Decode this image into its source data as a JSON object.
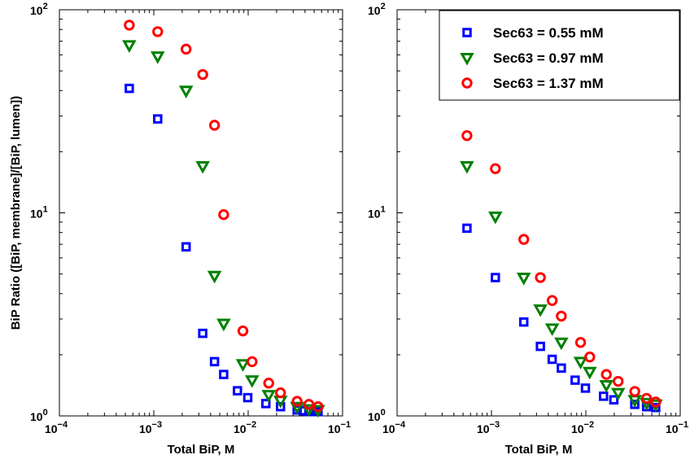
{
  "chart_data": [
    {
      "type": "scatter",
      "xscale": "log",
      "yscale": "log",
      "xlim": [
        0.0001,
        0.1
      ],
      "ylim": [
        1,
        100
      ],
      "xlabel": "Total BiP, M",
      "ylabel": "BiP Ratio ([BiP, membrane]/[BiP, lumen])",
      "x_ticks": [
        {
          "base": "10",
          "exp": "−4"
        },
        {
          "base": "10",
          "exp": "−3"
        },
        {
          "base": "10",
          "exp": "−2"
        },
        {
          "base": "10",
          "exp": "−1"
        }
      ],
      "y_ticks": [
        {
          "base": "10",
          "exp": "0"
        },
        {
          "base": "10",
          "exp": "1"
        },
        {
          "base": "10",
          "exp": "2"
        }
      ],
      "legend": null,
      "series": [
        {
          "name": "Sec63 = 0.55 mM",
          "marker": "square",
          "color": "#0000ff",
          "points": [
            [
              0.00055,
              41
            ],
            [
              0.0011,
              29
            ],
            [
              0.0022,
              6.8
            ],
            [
              0.0033,
              2.55
            ],
            [
              0.0044,
              1.85
            ],
            [
              0.0055,
              1.6
            ],
            [
              0.0077,
              1.33
            ],
            [
              0.0099,
              1.23
            ],
            [
              0.0154,
              1.15
            ],
            [
              0.022,
              1.11
            ],
            [
              0.033,
              1.07
            ],
            [
              0.0385,
              1.06
            ],
            [
              0.044,
              1.05
            ],
            [
              0.0495,
              1.05
            ],
            [
              0.055,
              1.05
            ]
          ]
        },
        {
          "name": "Sec63 = 0.97 mM",
          "marker": "triangle-down",
          "color": "#008000",
          "points": [
            [
              0.00055,
              67
            ],
            [
              0.0011,
              59
            ],
            [
              0.0022,
              40
            ],
            [
              0.0033,
              17
            ],
            [
              0.0044,
              4.9
            ],
            [
              0.0055,
              2.85
            ],
            [
              0.0088,
              1.8
            ],
            [
              0.011,
              1.5
            ],
            [
              0.0165,
              1.27
            ],
            [
              0.022,
              1.19
            ],
            [
              0.033,
              1.11
            ],
            [
              0.044,
              1.08
            ],
            [
              0.055,
              1.07
            ]
          ]
        },
        {
          "name": "Sec63 = 1.37 mM",
          "marker": "circle",
          "color": "#ff0000",
          "points": [
            [
              0.00055,
              84
            ],
            [
              0.0011,
              78
            ],
            [
              0.0022,
              64
            ],
            [
              0.0033,
              48
            ],
            [
              0.0044,
              27
            ],
            [
              0.0055,
              9.8
            ],
            [
              0.0088,
              2.62
            ],
            [
              0.011,
              1.85
            ],
            [
              0.0165,
              1.45
            ],
            [
              0.022,
              1.3
            ],
            [
              0.033,
              1.18
            ],
            [
              0.044,
              1.14
            ],
            [
              0.055,
              1.11
            ]
          ]
        }
      ]
    },
    {
      "type": "scatter",
      "xscale": "log",
      "yscale": "log",
      "xlim": [
        0.0001,
        0.1
      ],
      "ylim": [
        1,
        100
      ],
      "xlabel": "Total BiP, M",
      "ylabel": "",
      "x_ticks": [
        {
          "base": "10",
          "exp": "−4"
        },
        {
          "base": "10",
          "exp": "−3"
        },
        {
          "base": "10",
          "exp": "−2"
        },
        {
          "base": "10",
          "exp": "−1"
        }
      ],
      "y_ticks": [
        {
          "base": "10",
          "exp": "0"
        },
        {
          "base": "10",
          "exp": "1"
        },
        {
          "base": "10",
          "exp": "2"
        }
      ],
      "legend": "top-right",
      "series": [
        {
          "name": "Sec63 = 0.55 mM",
          "marker": "square",
          "color": "#0000ff",
          "points": [
            [
              0.00055,
              8.4
            ],
            [
              0.0011,
              4.8
            ],
            [
              0.0022,
              2.9
            ],
            [
              0.0033,
              2.2
            ],
            [
              0.0044,
              1.9
            ],
            [
              0.0055,
              1.72
            ],
            [
              0.0077,
              1.5
            ],
            [
              0.0099,
              1.37
            ],
            [
              0.0154,
              1.25
            ],
            [
              0.0198,
              1.2
            ],
            [
              0.033,
              1.14
            ],
            [
              0.044,
              1.11
            ],
            [
              0.055,
              1.1
            ]
          ]
        },
        {
          "name": "Sec63 = 0.97 mM",
          "marker": "triangle-down",
          "color": "#008000",
          "points": [
            [
              0.00055,
              17
            ],
            [
              0.0011,
              9.6
            ],
            [
              0.0022,
              4.8
            ],
            [
              0.0033,
              3.35
            ],
            [
              0.0044,
              2.7
            ],
            [
              0.0055,
              2.3
            ],
            [
              0.0088,
              1.85
            ],
            [
              0.011,
              1.65
            ],
            [
              0.0165,
              1.42
            ],
            [
              0.022,
              1.3
            ],
            [
              0.033,
              1.2
            ],
            [
              0.044,
              1.16
            ],
            [
              0.055,
              1.14
            ]
          ]
        },
        {
          "name": "Sec63 = 1.37 mM",
          "marker": "circle",
          "color": "#ff0000",
          "points": [
            [
              0.00055,
              24
            ],
            [
              0.0011,
              16.5
            ],
            [
              0.0022,
              7.4
            ],
            [
              0.0033,
              4.8
            ],
            [
              0.0044,
              3.7
            ],
            [
              0.0055,
              3.1
            ],
            [
              0.0088,
              2.3
            ],
            [
              0.011,
              1.95
            ],
            [
              0.0165,
              1.6
            ],
            [
              0.022,
              1.48
            ],
            [
              0.033,
              1.32
            ],
            [
              0.044,
              1.22
            ],
            [
              0.055,
              1.17
            ]
          ]
        }
      ]
    }
  ]
}
